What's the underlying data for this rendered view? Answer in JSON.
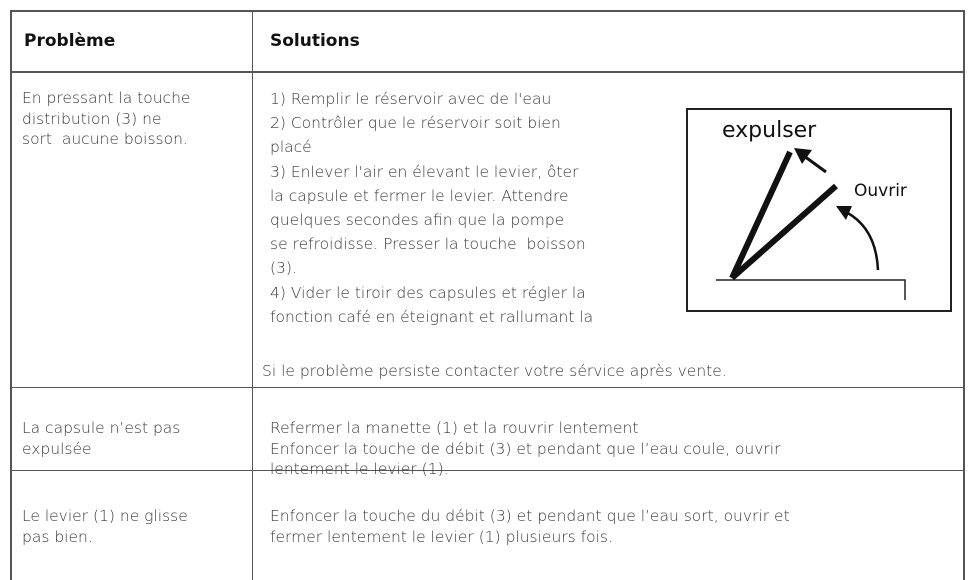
{
  "table": {
    "header": [
      "Problème",
      "Solutions"
    ],
    "rows": [
      {
        "problem": [
          "En pressant la touche",
          "distribution (3) ne",
          "sort  aucune boisson."
        ],
        "solutions": [
          "1) Remplir le réservoir avec de l'eau",
          "2) Contrôler que le réservoir soit bien",
          "placé",
          "3) Enlever l'air en élevant le levier, ôter",
          "la capsule et fermer le levier. Attendre",
          "quelques secondes afin que la pompe",
          "se refroidisse. Presser la touche  boisson",
          "(3).",
          "4) Vider le tiroir des capsules et régler la",
          "fonction café en éteignant et rallumant la"
        ],
        "figure": {
          "labels": [
            "expulser",
            "Ouvrir"
          ]
        },
        "note": "Si le problème persiste contacter votre sérvice après vente."
      },
      {
        "problem": [
          "La capsule n’est pas",
          "expulsée"
        ],
        "solutions": [
          "Refermer la manette (1) et la rouvrir lentement",
          "Enfoncer la touche de débit (3) et pendant que l’eau coule, ouvrir",
          "lentement le levier (1)."
        ]
      },
      {
        "problem": [
          "Le levier (1) ne glisse",
          "pas bien."
        ],
        "solutions": [
          "Enfoncer la touche du débit (3) et pendant que l’eau sort, ouvrir et",
          "fermer lentement le levier (1) plusieurs fois."
        ]
      }
    ]
  }
}
